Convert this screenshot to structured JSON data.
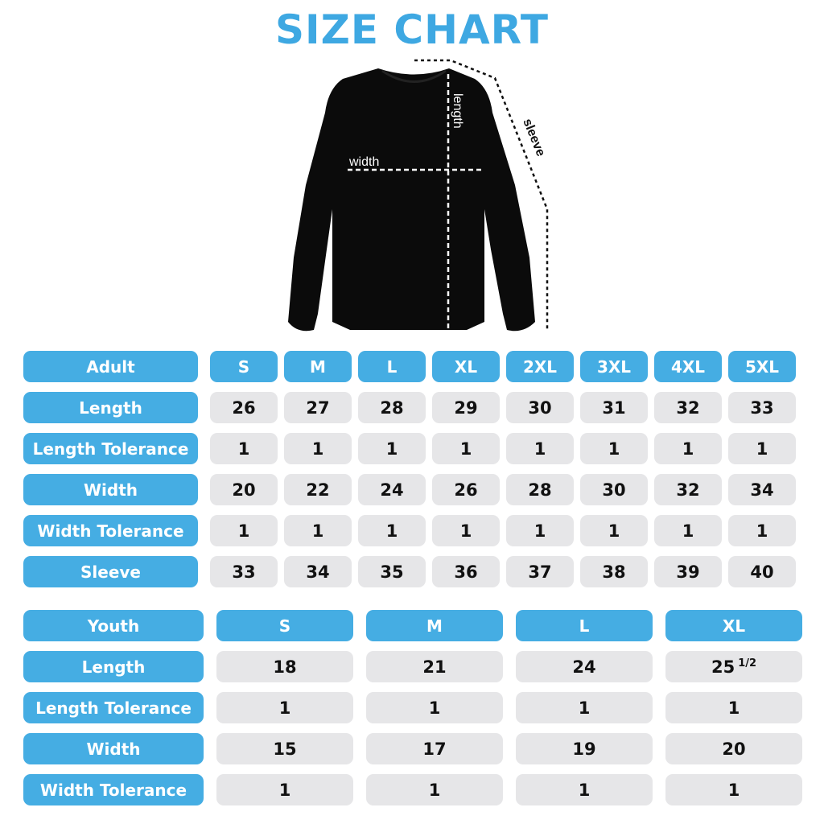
{
  "title": "SIZE CHART",
  "diagram": {
    "width_label": "width",
    "length_label": "length",
    "sleeve_label": "sleeve",
    "garment_color": "#000000"
  },
  "colors": {
    "accent": "#45ade3",
    "cell": "#e6e6e8",
    "title": "#3ea8e2"
  },
  "adult": {
    "header": "Adult",
    "sizes": [
      "S",
      "M",
      "L",
      "XL",
      "2XL",
      "3XL",
      "4XL",
      "5XL"
    ],
    "rows": [
      {
        "label": "Length",
        "values": [
          "26",
          "27",
          "28",
          "29",
          "30",
          "31",
          "32",
          "33"
        ]
      },
      {
        "label": "Length Tolerance",
        "values": [
          "1",
          "1",
          "1",
          "1",
          "1",
          "1",
          "1",
          "1"
        ]
      },
      {
        "label": "Width",
        "values": [
          "20",
          "22",
          "24",
          "26",
          "28",
          "30",
          "32",
          "34"
        ]
      },
      {
        "label": "Width Tolerance",
        "values": [
          "1",
          "1",
          "1",
          "1",
          "1",
          "1",
          "1",
          "1"
        ]
      },
      {
        "label": "Sleeve",
        "values": [
          "33",
          "34",
          "35",
          "36",
          "37",
          "38",
          "39",
          "40"
        ]
      }
    ]
  },
  "youth": {
    "header": "Youth",
    "sizes": [
      "S",
      "M",
      "L",
      "XL"
    ],
    "rows": [
      {
        "label": "Length",
        "values": [
          "18",
          "21",
          "24",
          "25 1/2"
        ]
      },
      {
        "label": "Length Tolerance",
        "values": [
          "1",
          "1",
          "1",
          "1"
        ]
      },
      {
        "label": "Width",
        "values": [
          "15",
          "17",
          "19",
          "20"
        ]
      },
      {
        "label": "Width Tolerance",
        "values": [
          "1",
          "1",
          "1",
          "1"
        ]
      }
    ]
  }
}
